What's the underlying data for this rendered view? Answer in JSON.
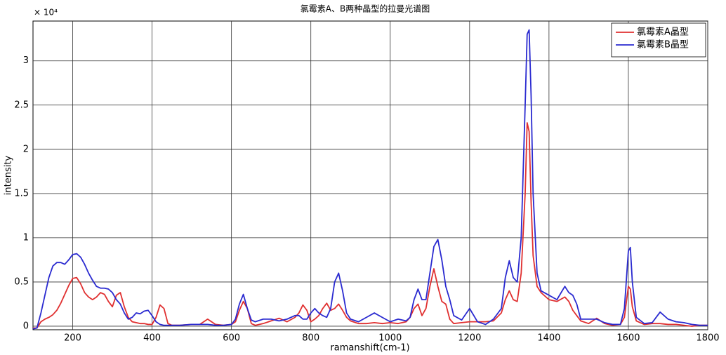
{
  "chart_data": {
    "type": "line",
    "title": "氯霉素A、B两种晶型的拉曼光谱图",
    "x_label": "ramanshift(cm-1)",
    "y_label": "intensity",
    "y_scale_label": "× 10⁴",
    "xlim": [
      100,
      1800
    ],
    "ylim": [
      -0.04,
      3.45
    ],
    "xticks": [
      200,
      400,
      600,
      800,
      1000,
      1200,
      1400,
      1600,
      1800
    ],
    "yticks": [
      0,
      0.5,
      1,
      1.5,
      2,
      2.5,
      3
    ],
    "grid": true,
    "legend": "upper right",
    "x": [
      100,
      110,
      120,
      130,
      140,
      150,
      160,
      170,
      180,
      190,
      200,
      210,
      220,
      230,
      240,
      250,
      260,
      270,
      280,
      290,
      300,
      310,
      320,
      330,
      340,
      350,
      360,
      370,
      380,
      390,
      400,
      410,
      420,
      430,
      440,
      450,
      470,
      500,
      520,
      540,
      560,
      580,
      600,
      610,
      620,
      630,
      640,
      650,
      660,
      680,
      700,
      720,
      740,
      760,
      770,
      780,
      790,
      800,
      810,
      820,
      830,
      840,
      850,
      860,
      870,
      880,
      890,
      900,
      920,
      940,
      960,
      980,
      1000,
      1020,
      1040,
      1050,
      1060,
      1070,
      1080,
      1090,
      1100,
      1110,
      1120,
      1130,
      1140,
      1150,
      1160,
      1180,
      1200,
      1220,
      1240,
      1260,
      1280,
      1290,
      1300,
      1310,
      1320,
      1330,
      1340,
      1345,
      1350,
      1355,
      1360,
      1370,
      1380,
      1400,
      1420,
      1440,
      1450,
      1460,
      1470,
      1480,
      1500,
      1520,
      1540,
      1560,
      1580,
      1590,
      1600,
      1605,
      1610,
      1620,
      1640,
      1660,
      1680,
      1700,
      1720,
      1740,
      1760,
      1780,
      1800
    ],
    "series": [
      {
        "name": "氯霉素A晶型",
        "color": "#e03030",
        "values": [
          -0.02,
          -0.02,
          0.05,
          0.08,
          0.1,
          0.13,
          0.18,
          0.26,
          0.36,
          0.46,
          0.54,
          0.55,
          0.48,
          0.38,
          0.33,
          0.3,
          0.33,
          0.38,
          0.36,
          0.28,
          0.22,
          0.35,
          0.38,
          0.22,
          0.1,
          0.05,
          0.04,
          0.03,
          0.03,
          0.02,
          0.02,
          0.1,
          0.24,
          0.2,
          0.03,
          0.01,
          0.01,
          0.02,
          0.02,
          0.08,
          0.02,
          0.01,
          0.02,
          0.05,
          0.18,
          0.28,
          0.2,
          0.03,
          0.01,
          0.03,
          0.06,
          0.09,
          0.05,
          0.1,
          0.15,
          0.24,
          0.18,
          0.05,
          0.08,
          0.12,
          0.2,
          0.26,
          0.18,
          0.2,
          0.25,
          0.18,
          0.1,
          0.06,
          0.03,
          0.03,
          0.04,
          0.03,
          0.04,
          0.03,
          0.05,
          0.1,
          0.2,
          0.25,
          0.12,
          0.2,
          0.45,
          0.65,
          0.45,
          0.28,
          0.25,
          0.08,
          0.03,
          0.04,
          0.05,
          0.05,
          0.05,
          0.06,
          0.15,
          0.3,
          0.4,
          0.3,
          0.28,
          0.6,
          1.5,
          2.3,
          2.2,
          1.4,
          0.8,
          0.45,
          0.38,
          0.3,
          0.28,
          0.33,
          0.28,
          0.18,
          0.12,
          0.06,
          0.03,
          0.09,
          0.03,
          0.01,
          0.02,
          0.1,
          0.45,
          0.42,
          0.22,
          0.06,
          0.02,
          0.03,
          0.03,
          0.02,
          0.02,
          0.01,
          0.0,
          0.01,
          0.01
        ]
      },
      {
        "name": "氯霉素B晶型",
        "color": "#2a2ad0",
        "values": [
          -0.03,
          -0.02,
          0.15,
          0.35,
          0.55,
          0.68,
          0.72,
          0.72,
          0.7,
          0.75,
          0.81,
          0.82,
          0.78,
          0.7,
          0.6,
          0.52,
          0.45,
          0.43,
          0.43,
          0.42,
          0.38,
          0.3,
          0.25,
          0.15,
          0.08,
          0.1,
          0.15,
          0.14,
          0.17,
          0.18,
          0.12,
          0.05,
          0.02,
          0.01,
          0.01,
          0.01,
          0.01,
          0.02,
          0.02,
          0.02,
          0.01,
          0.01,
          0.02,
          0.08,
          0.25,
          0.36,
          0.2,
          0.07,
          0.05,
          0.08,
          0.08,
          0.06,
          0.08,
          0.12,
          0.12,
          0.08,
          0.08,
          0.15,
          0.2,
          0.15,
          0.12,
          0.1,
          0.2,
          0.5,
          0.6,
          0.4,
          0.15,
          0.08,
          0.05,
          0.1,
          0.15,
          0.1,
          0.05,
          0.08,
          0.06,
          0.1,
          0.3,
          0.42,
          0.3,
          0.3,
          0.6,
          0.9,
          0.98,
          0.75,
          0.45,
          0.3,
          0.12,
          0.07,
          0.2,
          0.05,
          0.02,
          0.08,
          0.2,
          0.55,
          0.74,
          0.55,
          0.5,
          1.0,
          2.5,
          3.3,
          3.35,
          2.6,
          1.5,
          0.6,
          0.4,
          0.35,
          0.3,
          0.45,
          0.38,
          0.35,
          0.25,
          0.08,
          0.08,
          0.08,
          0.04,
          0.02,
          0.02,
          0.2,
          0.85,
          0.89,
          0.5,
          0.1,
          0.03,
          0.04,
          0.16,
          0.08,
          0.05,
          0.04,
          0.02,
          0.01,
          0.01
        ]
      }
    ]
  }
}
